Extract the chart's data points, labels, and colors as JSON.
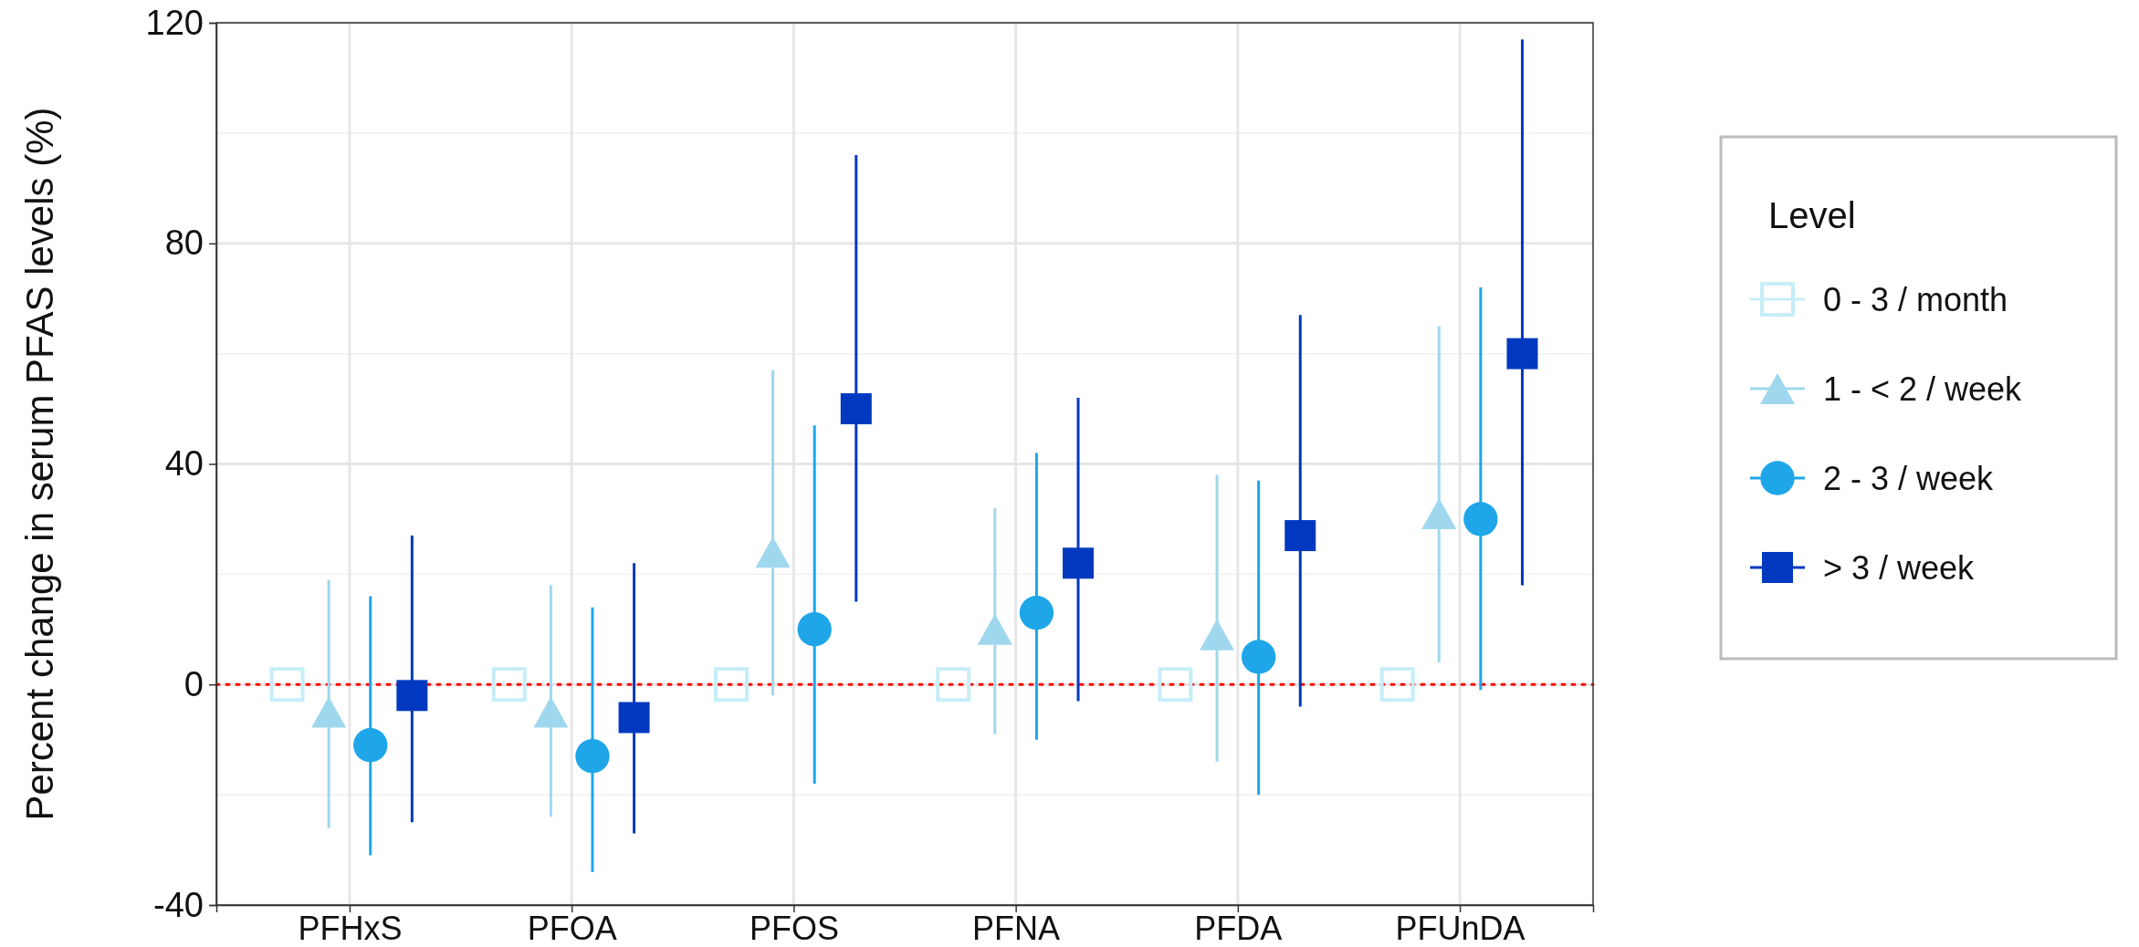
{
  "chart_data": {
    "type": "scatter",
    "ylabel": "Percent change in serum PFAS levels (%)",
    "legend_title": "Level",
    "categories": [
      "PFHxS",
      "PFOA",
      "PFOS",
      "PFNA",
      "PFDA",
      "PFUnDA"
    ],
    "series": [
      {
        "name": "0 - 3 / month",
        "color": "#c6eef8",
        "marker": "square",
        "values": [
          0,
          0,
          0,
          0,
          0,
          0
        ]
      },
      {
        "name": "1 - < 2 / week",
        "color": "#9fd8ee",
        "marker": "triangle",
        "values": [
          -5,
          -5,
          24,
          10,
          9,
          31
        ],
        "errors": [
          [
            -26,
            19
          ],
          [
            -24,
            18
          ],
          [
            -2,
            57
          ],
          [
            -9,
            32
          ],
          [
            -14,
            38
          ],
          [
            4,
            65
          ]
        ]
      },
      {
        "name": "2 - 3 / week",
        "color": "#1ea6e8",
        "marker": "circle",
        "values": [
          -11,
          -13,
          10,
          13,
          5,
          30
        ],
        "errors": [
          [
            -31,
            16
          ],
          [
            -34,
            14
          ],
          [
            -18,
            47
          ],
          [
            -10,
            42
          ],
          [
            -20,
            37
          ],
          [
            -1,
            72
          ]
        ]
      },
      {
        "name": "> 3 / week",
        "color": "#0039c0",
        "marker": "square",
        "values": [
          -2,
          -6,
          50,
          22,
          27,
          60
        ],
        "errors": [
          [
            -25,
            27
          ],
          [
            -27,
            22
          ],
          [
            15,
            96
          ],
          [
            -3,
            52
          ],
          [
            -4,
            67
          ],
          [
            18,
            117
          ]
        ]
      }
    ],
    "ylim": [
      -40,
      120
    ],
    "yticks": [
      -40,
      0,
      40,
      80,
      120
    ],
    "grid": true,
    "legend": "right",
    "ref_lines": [
      {
        "axis": "y",
        "value": 0,
        "color": "#ff0000",
        "line_style": "dotted"
      }
    ]
  }
}
